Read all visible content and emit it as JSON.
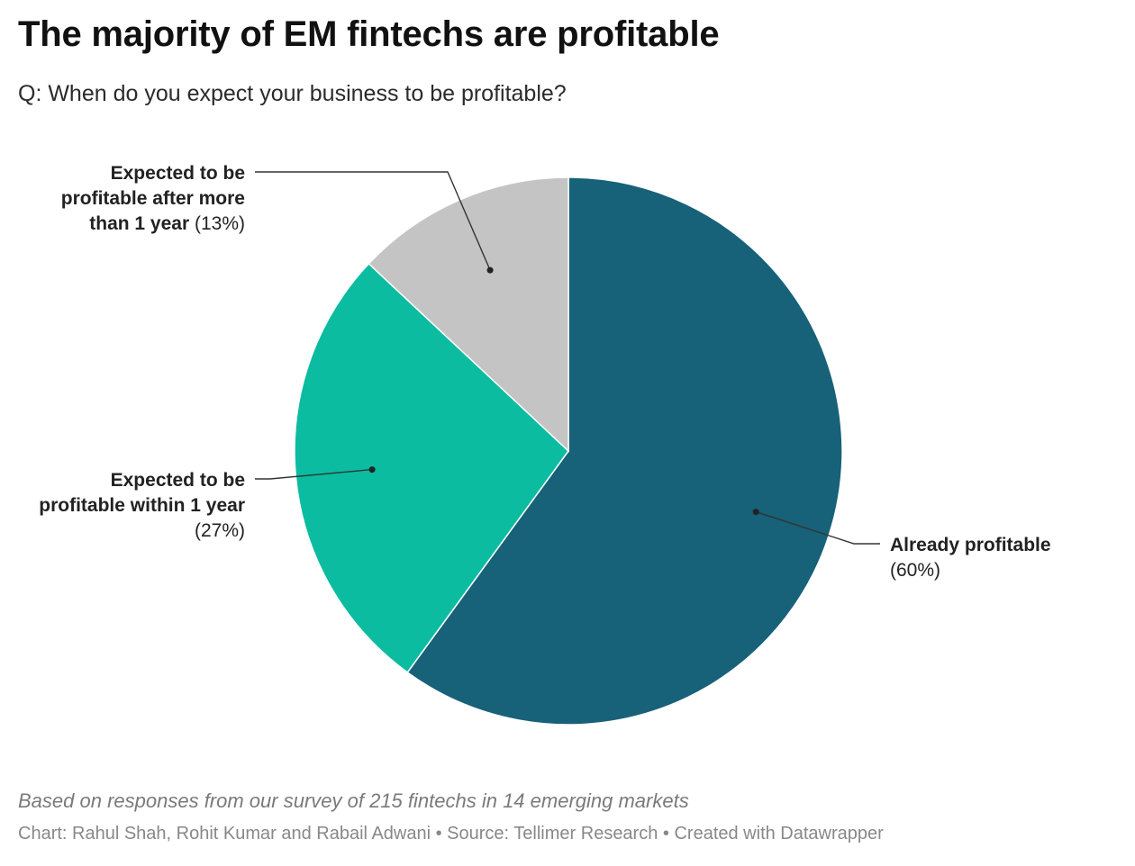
{
  "header": {
    "title": "The majority of EM fintechs are profitable",
    "subtitle": "Q: When do you expect your business to be profitable?"
  },
  "chart_data": {
    "type": "pie",
    "slices": [
      {
        "label_lines": [
          "Already profitable"
        ],
        "pct_text": "(60%)",
        "value": 60,
        "color": "#176179"
      },
      {
        "label_lines": [
          "Expected to be",
          "profitable within 1 year"
        ],
        "pct_text": "(27%)",
        "value": 27,
        "color": "#0bbca0"
      },
      {
        "label_lines": [
          "Expected to be",
          "profitable after more",
          "than 1 year"
        ],
        "pct_text": "(13%)",
        "value": 13,
        "color": "#c4c4c4"
      }
    ]
  },
  "notes": {
    "description": "Based on responses from our survey of 215 fintechs in 14 emerging markets"
  },
  "footer": {
    "chart_credit": "Chart: Rahul Shah, Rohit Kumar and Rabail Adwani",
    "separator": " • ",
    "source": "Source: Tellimer Research",
    "created_with": "Created with Datawrapper"
  }
}
